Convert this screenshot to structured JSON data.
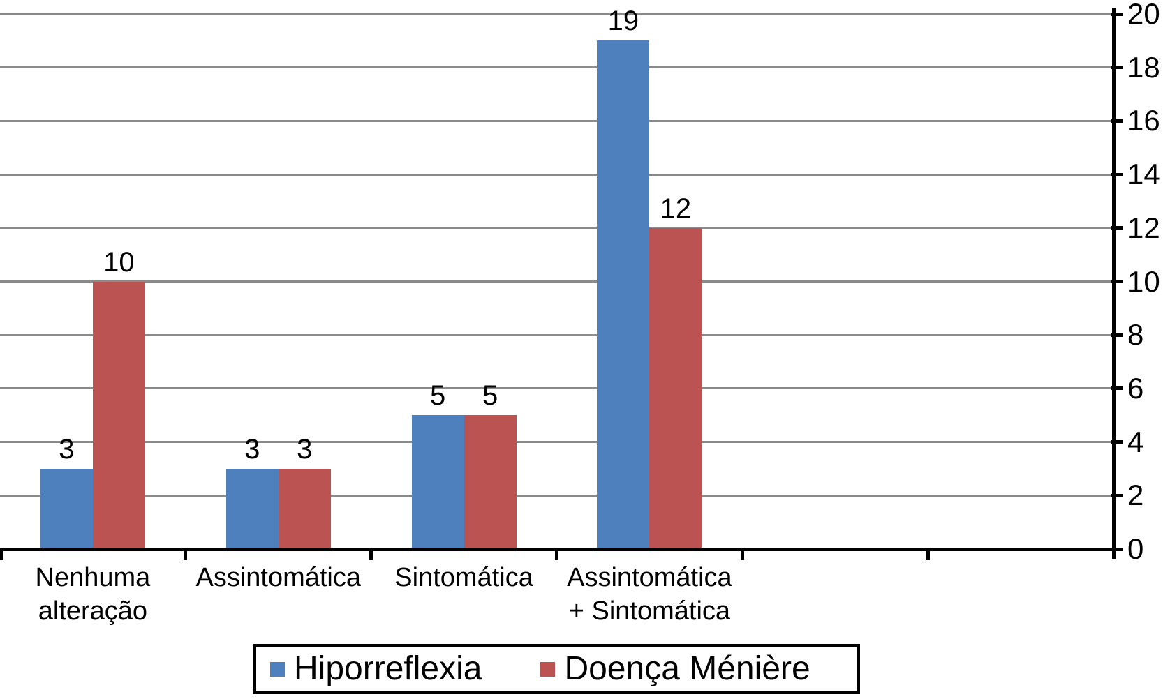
{
  "chart_data": {
    "type": "bar",
    "title": "",
    "categories": [
      "Nenhuma alteração",
      "Assintomática",
      "Sintomática",
      "Assintomática + Sintomática"
    ],
    "category_lines": [
      [
        "Nenhuma",
        "alteração"
      ],
      [
        "Assintomática"
      ],
      [
        "Sintomática"
      ],
      [
        "Assintomática",
        "+ Sintomática"
      ]
    ],
    "series": [
      {
        "name": "Hiporreflexia",
        "color": "#4d80bd",
        "values": [
          3,
          3,
          5,
          19
        ]
      },
      {
        "name": "Doença Ménière",
        "color": "#bb5353",
        "values": [
          10,
          3,
          5,
          12
        ]
      }
    ],
    "data_labels_shown": true,
    "ylim": [
      0,
      20
    ],
    "ytick_step": 2,
    "yticks": [
      0,
      2,
      4,
      6,
      8,
      10,
      12,
      14,
      16,
      18,
      20
    ],
    "y_axis_side": "right",
    "grid": true,
    "gridline_color": "#8a8a8a",
    "axis_color": "#000000",
    "text_color": "#000000",
    "background_color": "#ffffff",
    "legend_position": "bottom",
    "total_category_slots": 6
  }
}
